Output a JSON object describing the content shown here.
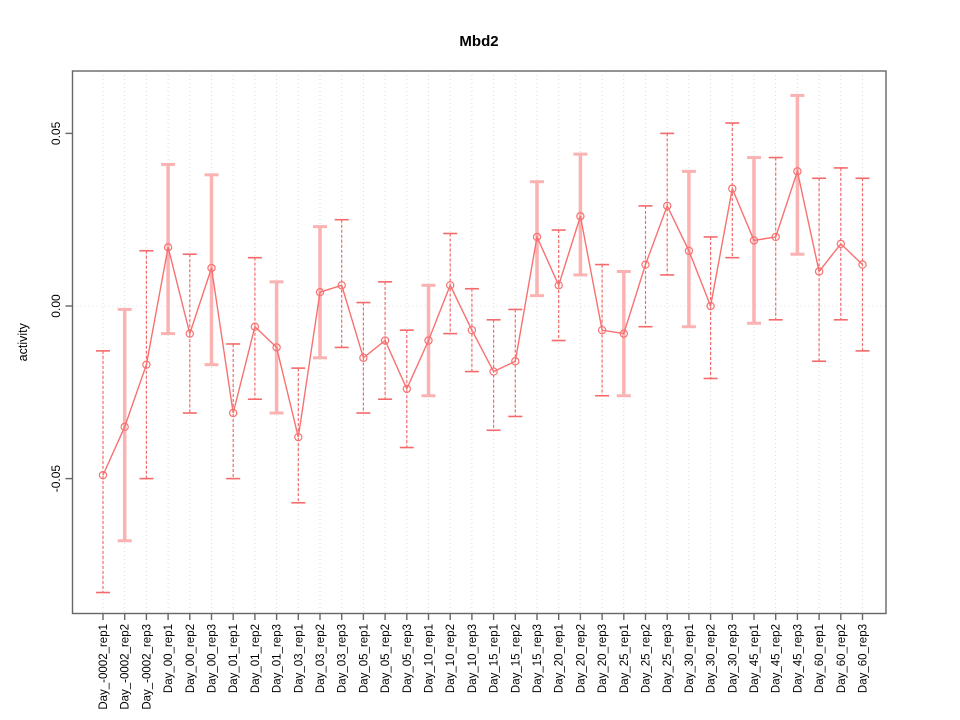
{
  "chart_data": {
    "type": "line",
    "title": "Mbd2",
    "xlabel": "",
    "ylabel": "activity",
    "ylim": [
      -0.09,
      0.065
    ],
    "y_ticks": [
      0.05,
      0.0,
      -0.05
    ],
    "y_tick_labels": [
      "0.05",
      "0.00",
      "-0.05"
    ],
    "grid": "dotted light-grey vertical line at every category; dotted horizontal line at y=0",
    "legend_position": "none",
    "point_style": "open-circle-with-error-bars",
    "categories": [
      "Day_-0002_rep1",
      "Day_-0002_rep2",
      "Day_-0002_rep3",
      "Day_00_rep1",
      "Day_00_rep2",
      "Day_00_rep3",
      "Day_01_rep1",
      "Day_01_rep2",
      "Day_01_rep3",
      "Day_03_rep1",
      "Day_03_rep2",
      "Day_03_rep3",
      "Day_05_rep1",
      "Day_05_rep2",
      "Day_05_rep3",
      "Day_10_rep1",
      "Day_10_rep2",
      "Day_10_rep3",
      "Day_15_rep1",
      "Day_15_rep2",
      "Day_15_rep3",
      "Day_20_rep1",
      "Day_20_rep2",
      "Day_20_rep3",
      "Day_25_rep1",
      "Day_25_rep2",
      "Day_25_rep3",
      "Day_30_rep1",
      "Day_30_rep2",
      "Day_30_rep3",
      "Day_45_rep1",
      "Day_45_rep2",
      "Day_45_rep3",
      "Day_60_rep1",
      "Day_60_rep2",
      "Day_60_rep3"
    ],
    "series": [
      {
        "name": "activity",
        "values": [
          -0.049,
          -0.035,
          -0.017,
          0.017,
          -0.008,
          0.011,
          -0.031,
          -0.006,
          -0.012,
          -0.038,
          0.004,
          0.006,
          -0.015,
          -0.01,
          -0.024,
          -0.01,
          0.006,
          -0.007,
          -0.019,
          -0.016,
          0.02,
          0.006,
          0.026,
          -0.007,
          -0.008,
          0.012,
          0.029,
          0.016,
          0.0,
          0.034,
          0.019,
          0.02,
          0.039,
          0.01,
          0.018,
          0.012
        ],
        "error_low": [
          -0.083,
          -0.068,
          -0.05,
          -0.008,
          -0.031,
          -0.017,
          -0.05,
          -0.027,
          -0.031,
          -0.057,
          -0.015,
          -0.012,
          -0.031,
          -0.027,
          -0.041,
          -0.026,
          -0.008,
          -0.019,
          -0.036,
          -0.032,
          0.003,
          -0.01,
          0.009,
          -0.026,
          -0.026,
          -0.006,
          0.009,
          -0.006,
          -0.021,
          0.014,
          -0.005,
          -0.004,
          0.015,
          -0.016,
          -0.004,
          -0.013
        ],
        "error_high": [
          -0.013,
          -0.001,
          0.016,
          0.041,
          0.015,
          0.038,
          -0.011,
          0.014,
          0.007,
          -0.018,
          0.023,
          0.025,
          0.001,
          0.007,
          -0.007,
          0.006,
          0.021,
          0.005,
          -0.004,
          -0.001,
          0.036,
          0.022,
          0.044,
          0.012,
          0.01,
          0.029,
          0.05,
          0.039,
          0.02,
          0.053,
          0.043,
          0.043,
          0.061,
          0.037,
          0.04,
          0.037
        ]
      }
    ],
    "light_error_bar_indices": [
      1,
      3,
      5,
      8,
      10,
      15,
      20,
      22,
      24,
      27,
      30,
      32
    ]
  },
  "colors": {
    "line": "#f87171",
    "point_stroke": "#f87171",
    "error_bar_dark": "#f46a6a",
    "error_bar_light": "#fbb2b2",
    "grid": "#d9d9d9",
    "zero_line": "#dedede",
    "axis": "#666666",
    "text": "#000000",
    "background": "#ffffff"
  }
}
